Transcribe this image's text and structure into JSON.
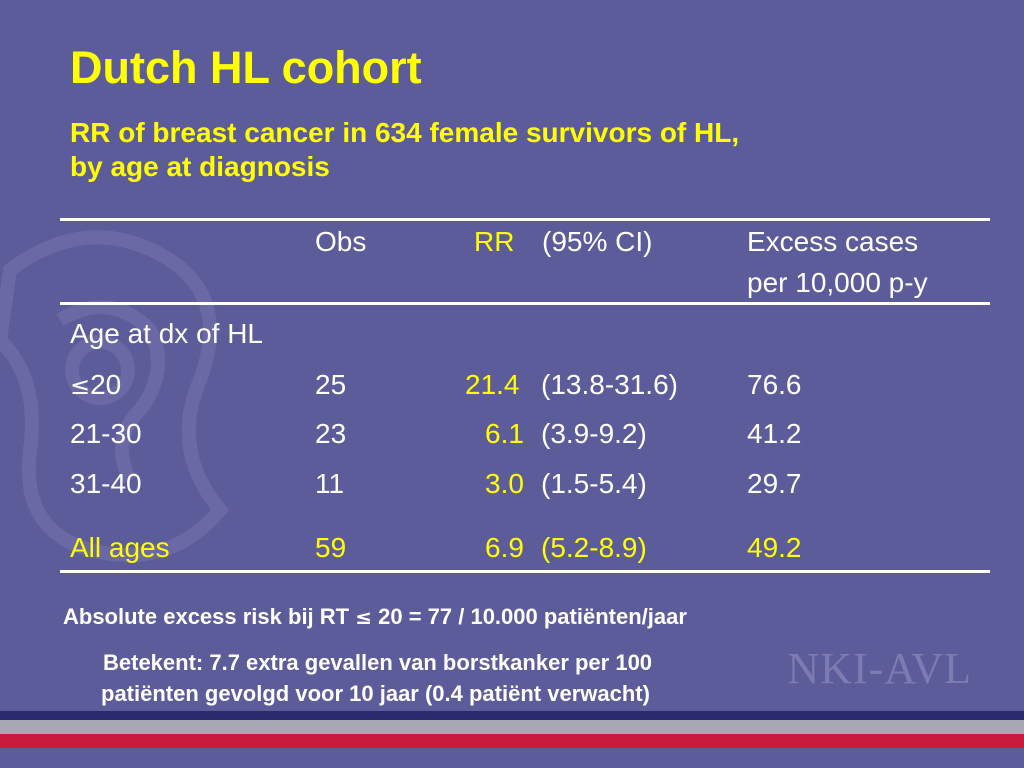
{
  "slide": {
    "title": "Dutch HL cohort",
    "subtitle_line1": "RR of breast cancer in 634 female survivors of HL,",
    "subtitle_line2": "by age at diagnosis",
    "logo_text": "NKI-AVL"
  },
  "table": {
    "header": {
      "obs": "Obs",
      "rr": "RR",
      "ci": "(95% CI)",
      "excess_line1": "Excess cases",
      "excess_line2": "per 10,000 p-y"
    },
    "section_label": "Age at dx of HL",
    "rows": [
      {
        "age_symbol": "≤",
        "age": "20",
        "obs": "25",
        "rr": "21.4",
        "ci": "(13.8-31.6)",
        "excess": "76.6"
      },
      {
        "age": "21-30",
        "obs": "23",
        "rr": "6.1",
        "ci": "(3.9-9.2)",
        "excess": "41.2"
      },
      {
        "age": "31-40",
        "obs": "11",
        "rr": "3.0",
        "ci": "(1.5-5.4)",
        "excess": "29.7"
      }
    ],
    "total": {
      "age": "All ages",
      "obs": "59",
      "rr": "6.9",
      "ci": "(5.2-8.9)",
      "excess": "49.2"
    }
  },
  "notes": {
    "line1_prefix": "Absolute excess risk bij RT ",
    "line1_symbol": "≤",
    "line1_suffix": " 20 = 77 / 10.000 patiënten/jaar",
    "line2": "Betekent: 7.7 extra gevallen van borstkanker per 100",
    "line3": "patiënten gevolgd voor 10 jaar (0.4 patiënt verwacht)"
  },
  "colors": {
    "background": "#5d5c9a",
    "highlight": "#ffff00",
    "text": "#ffffff",
    "band_navy": "#2a2a70",
    "band_grey": "#a8a8b4",
    "band_red": "#c81a3c"
  }
}
